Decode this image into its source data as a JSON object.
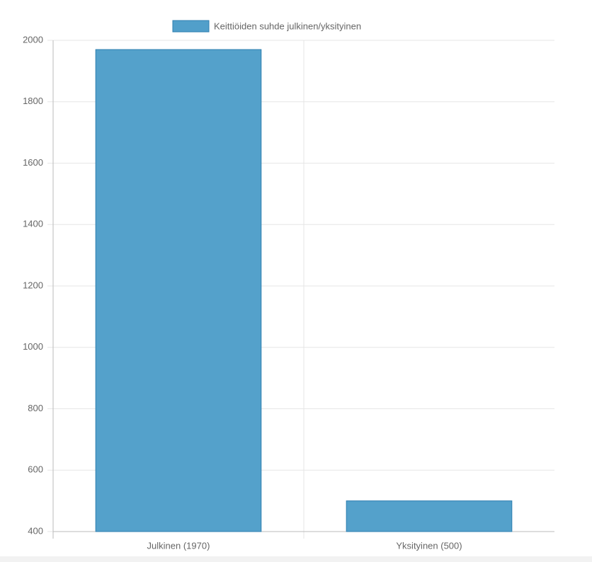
{
  "chart_data": {
    "type": "bar",
    "categories": [
      "Julkinen (1970)",
      "Yksityinen (500)"
    ],
    "series": [
      {
        "name": "Keittiöiden suhde julkinen/yksityinen",
        "color": "#519fca",
        "values": [
          1970,
          500
        ]
      }
    ],
    "ylim": [
      400,
      2000
    ],
    "yticks": [
      400,
      600,
      800,
      1000,
      1200,
      1400,
      1600,
      1800,
      2000
    ],
    "grid": true,
    "legend": "top"
  }
}
